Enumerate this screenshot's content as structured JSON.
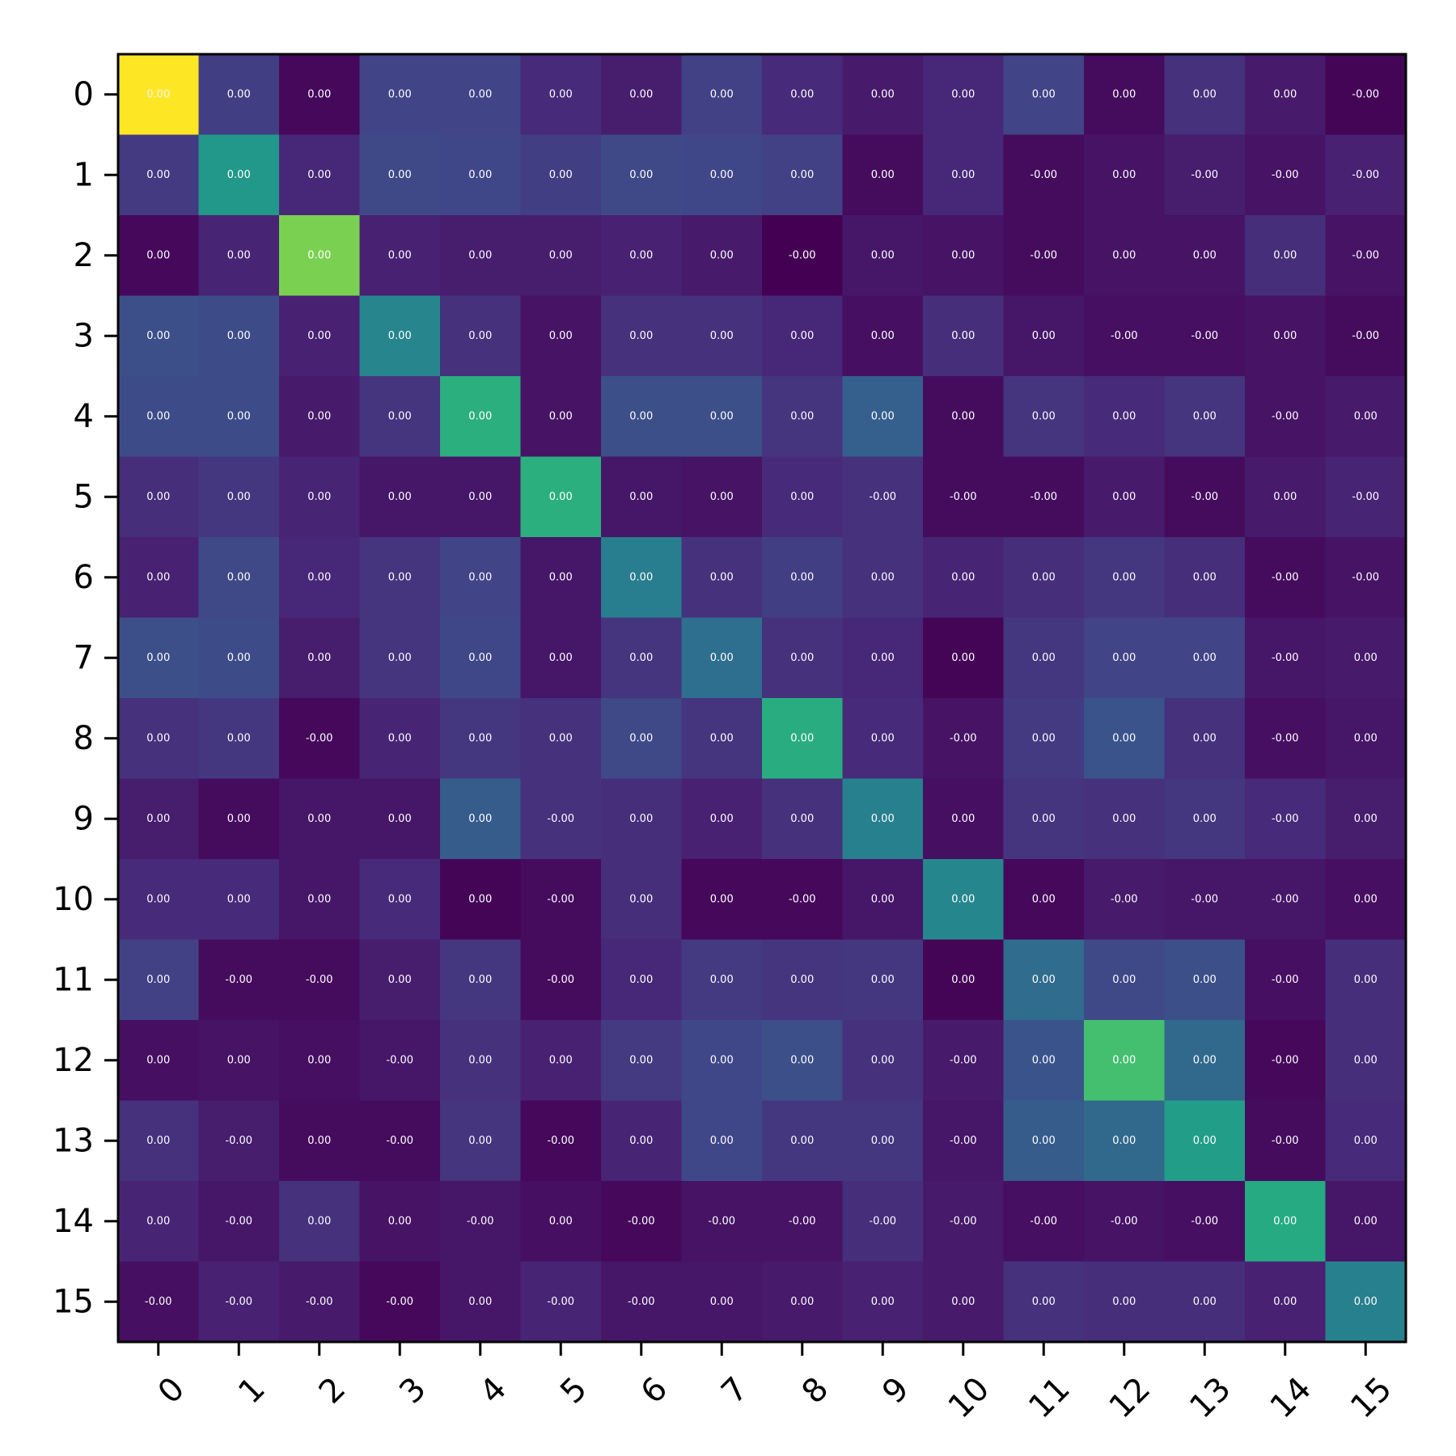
{
  "chart_data": {
    "type": "heatmap",
    "title": "",
    "xlabel": "",
    "ylabel": "",
    "x_categories": [
      "0",
      "1",
      "2",
      "3",
      "4",
      "5",
      "6",
      "7",
      "8",
      "9",
      "10",
      "11",
      "12",
      "13",
      "14",
      "15"
    ],
    "y_categories": [
      "0",
      "1",
      "2",
      "3",
      "4",
      "5",
      "6",
      "7",
      "8",
      "9",
      "10",
      "11",
      "12",
      "13",
      "14",
      "15"
    ],
    "colormap": "viridis",
    "intensity": [
      [
        1.0,
        0.18,
        0.02,
        0.2,
        0.2,
        0.12,
        0.08,
        0.19,
        0.12,
        0.07,
        0.11,
        0.2,
        0.03,
        0.14,
        0.07,
        0.01
      ],
      [
        0.17,
        0.53,
        0.11,
        0.22,
        0.21,
        0.18,
        0.22,
        0.21,
        0.19,
        0.03,
        0.11,
        0.03,
        0.05,
        0.08,
        0.05,
        0.09
      ],
      [
        0.02,
        0.1,
        0.8,
        0.09,
        0.08,
        0.08,
        0.09,
        0.07,
        0.0,
        0.06,
        0.05,
        0.03,
        0.05,
        0.05,
        0.13,
        0.05
      ],
      [
        0.24,
        0.23,
        0.09,
        0.45,
        0.14,
        0.05,
        0.14,
        0.14,
        0.11,
        0.04,
        0.13,
        0.06,
        0.04,
        0.04,
        0.05,
        0.03
      ],
      [
        0.23,
        0.23,
        0.07,
        0.15,
        0.63,
        0.05,
        0.24,
        0.24,
        0.15,
        0.3,
        0.03,
        0.15,
        0.12,
        0.15,
        0.05,
        0.07
      ],
      [
        0.13,
        0.16,
        0.1,
        0.06,
        0.06,
        0.63,
        0.06,
        0.05,
        0.12,
        0.14,
        0.03,
        0.03,
        0.07,
        0.03,
        0.07,
        0.1
      ],
      [
        0.09,
        0.22,
        0.11,
        0.15,
        0.2,
        0.06,
        0.42,
        0.14,
        0.18,
        0.14,
        0.1,
        0.13,
        0.16,
        0.13,
        0.03,
        0.05
      ],
      [
        0.24,
        0.23,
        0.08,
        0.15,
        0.21,
        0.06,
        0.15,
        0.36,
        0.14,
        0.11,
        0.01,
        0.16,
        0.2,
        0.2,
        0.06,
        0.07
      ],
      [
        0.14,
        0.16,
        0.02,
        0.1,
        0.16,
        0.14,
        0.22,
        0.15,
        0.62,
        0.12,
        0.05,
        0.17,
        0.26,
        0.14,
        0.04,
        0.06
      ],
      [
        0.08,
        0.03,
        0.06,
        0.06,
        0.29,
        0.14,
        0.13,
        0.09,
        0.14,
        0.43,
        0.04,
        0.15,
        0.14,
        0.16,
        0.12,
        0.08
      ],
      [
        0.12,
        0.12,
        0.06,
        0.12,
        0.01,
        0.03,
        0.13,
        0.02,
        0.02,
        0.06,
        0.46,
        0.02,
        0.07,
        0.06,
        0.06,
        0.04
      ],
      [
        0.19,
        0.03,
        0.03,
        0.08,
        0.16,
        0.03,
        0.11,
        0.17,
        0.15,
        0.16,
        0.01,
        0.35,
        0.22,
        0.24,
        0.04,
        0.13
      ],
      [
        0.04,
        0.05,
        0.04,
        0.06,
        0.14,
        0.09,
        0.17,
        0.21,
        0.24,
        0.14,
        0.07,
        0.26,
        0.7,
        0.34,
        0.02,
        0.13
      ],
      [
        0.14,
        0.08,
        0.03,
        0.03,
        0.15,
        0.02,
        0.1,
        0.21,
        0.16,
        0.16,
        0.06,
        0.29,
        0.34,
        0.55,
        0.03,
        0.12
      ],
      [
        0.1,
        0.06,
        0.14,
        0.05,
        0.06,
        0.04,
        0.02,
        0.05,
        0.05,
        0.13,
        0.07,
        0.04,
        0.05,
        0.04,
        0.61,
        0.06
      ],
      [
        0.04,
        0.09,
        0.07,
        0.02,
        0.06,
        0.1,
        0.06,
        0.06,
        0.07,
        0.09,
        0.07,
        0.14,
        0.13,
        0.13,
        0.09,
        0.43
      ]
    ],
    "cell_labels": [
      [
        "0.00",
        "0.00",
        "0.00",
        "0.00",
        "0.00",
        "0.00",
        "0.00",
        "0.00",
        "0.00",
        "0.00",
        "0.00",
        "0.00",
        "0.00",
        "0.00",
        "0.00",
        "-0.00"
      ],
      [
        "0.00",
        "0.00",
        "0.00",
        "0.00",
        "0.00",
        "0.00",
        "0.00",
        "0.00",
        "0.00",
        "0.00",
        "0.00",
        "-0.00",
        "0.00",
        "-0.00",
        "-0.00",
        "-0.00"
      ],
      [
        "0.00",
        "0.00",
        "0.00",
        "0.00",
        "0.00",
        "0.00",
        "0.00",
        "0.00",
        "-0.00",
        "0.00",
        "0.00",
        "-0.00",
        "0.00",
        "0.00",
        "0.00",
        "-0.00"
      ],
      [
        "0.00",
        "0.00",
        "0.00",
        "0.00",
        "0.00",
        "0.00",
        "0.00",
        "0.00",
        "0.00",
        "0.00",
        "0.00",
        "0.00",
        "-0.00",
        "-0.00",
        "0.00",
        "-0.00"
      ],
      [
        "0.00",
        "0.00",
        "0.00",
        "0.00",
        "0.00",
        "0.00",
        "0.00",
        "0.00",
        "0.00",
        "0.00",
        "0.00",
        "0.00",
        "0.00",
        "0.00",
        "-0.00",
        "0.00"
      ],
      [
        "0.00",
        "0.00",
        "0.00",
        "0.00",
        "0.00",
        "0.00",
        "0.00",
        "0.00",
        "0.00",
        "-0.00",
        "-0.00",
        "-0.00",
        "0.00",
        "-0.00",
        "0.00",
        "-0.00"
      ],
      [
        "0.00",
        "0.00",
        "0.00",
        "0.00",
        "0.00",
        "0.00",
        "0.00",
        "0.00",
        "0.00",
        "0.00",
        "0.00",
        "0.00",
        "0.00",
        "0.00",
        "-0.00",
        "-0.00"
      ],
      [
        "0.00",
        "0.00",
        "0.00",
        "0.00",
        "0.00",
        "0.00",
        "0.00",
        "0.00",
        "0.00",
        "0.00",
        "0.00",
        "0.00",
        "0.00",
        "0.00",
        "-0.00",
        "0.00"
      ],
      [
        "0.00",
        "0.00",
        "-0.00",
        "0.00",
        "0.00",
        "0.00",
        "0.00",
        "0.00",
        "0.00",
        "0.00",
        "-0.00",
        "0.00",
        "0.00",
        "0.00",
        "-0.00",
        "0.00"
      ],
      [
        "0.00",
        "0.00",
        "0.00",
        "0.00",
        "0.00",
        "-0.00",
        "0.00",
        "0.00",
        "0.00",
        "0.00",
        "0.00",
        "0.00",
        "0.00",
        "0.00",
        "-0.00",
        "0.00"
      ],
      [
        "0.00",
        "0.00",
        "0.00",
        "0.00",
        "0.00",
        "-0.00",
        "0.00",
        "0.00",
        "-0.00",
        "0.00",
        "0.00",
        "0.00",
        "-0.00",
        "-0.00",
        "-0.00",
        "0.00"
      ],
      [
        "0.00",
        "-0.00",
        "-0.00",
        "0.00",
        "0.00",
        "-0.00",
        "0.00",
        "0.00",
        "0.00",
        "0.00",
        "0.00",
        "0.00",
        "0.00",
        "0.00",
        "-0.00",
        "0.00"
      ],
      [
        "0.00",
        "0.00",
        "0.00",
        "-0.00",
        "0.00",
        "0.00",
        "0.00",
        "0.00",
        "0.00",
        "0.00",
        "-0.00",
        "0.00",
        "0.00",
        "0.00",
        "-0.00",
        "0.00"
      ],
      [
        "0.00",
        "-0.00",
        "0.00",
        "-0.00",
        "0.00",
        "-0.00",
        "0.00",
        "0.00",
        "0.00",
        "0.00",
        "-0.00",
        "0.00",
        "0.00",
        "0.00",
        "-0.00",
        "0.00"
      ],
      [
        "0.00",
        "-0.00",
        "0.00",
        "0.00",
        "-0.00",
        "0.00",
        "-0.00",
        "-0.00",
        "-0.00",
        "-0.00",
        "-0.00",
        "-0.00",
        "-0.00",
        "-0.00",
        "0.00",
        "0.00"
      ],
      [
        "-0.00",
        "-0.00",
        "-0.00",
        "-0.00",
        "0.00",
        "-0.00",
        "-0.00",
        "0.00",
        "0.00",
        "0.00",
        "0.00",
        "0.00",
        "0.00",
        "0.00",
        "0.00",
        "0.00"
      ]
    ],
    "grid": false,
    "colorbar": false
  }
}
